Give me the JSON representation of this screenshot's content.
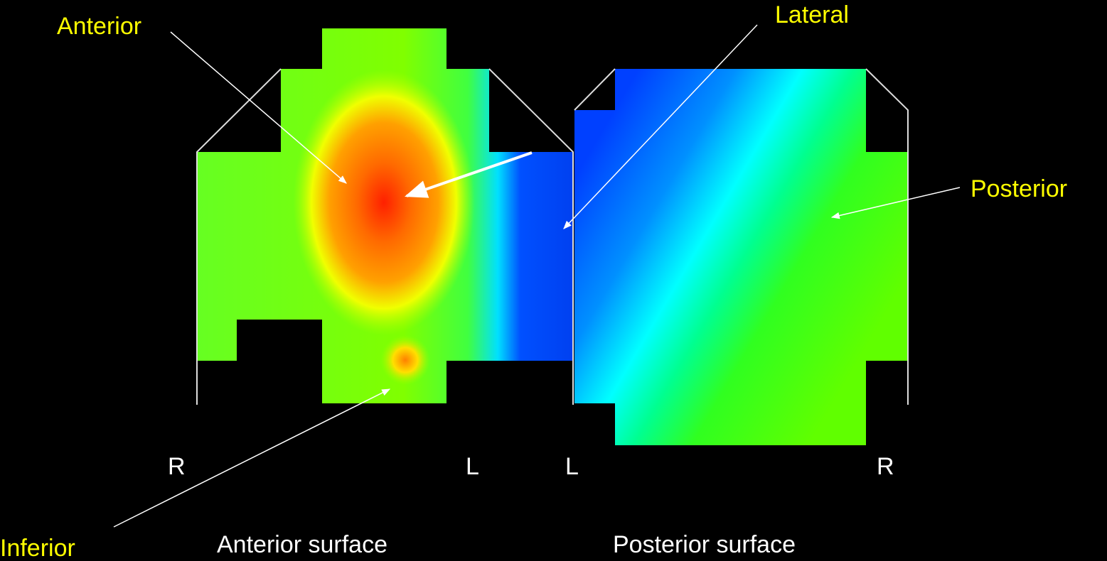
{
  "labels": {
    "anterior": "Anterior",
    "lateral": "Lateral",
    "posterior": "Posterior",
    "inferior": "Inferior"
  },
  "anterior_map": {
    "left_side": "R",
    "right_side": "L",
    "caption": "Anterior surface"
  },
  "posterior_map": {
    "left_side": "L",
    "right_side": "R",
    "caption": "Posterior surface"
  }
}
